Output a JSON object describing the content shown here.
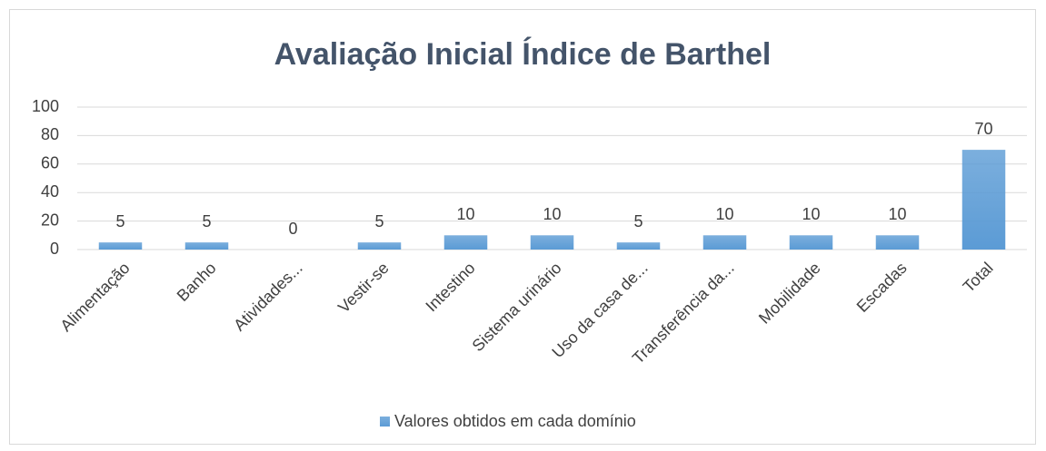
{
  "chart_data": {
    "type": "bar",
    "title": "Avaliação Inicial Índice de Barthel",
    "categories": [
      "Alimentação",
      "Banho",
      "Atividades...",
      "Vestir-se",
      "Intestino",
      "Sistema urinário",
      "Uso da casa de...",
      "Transferência da...",
      "Mobilidade",
      "Escadas",
      "Total"
    ],
    "series": [
      {
        "name": "Valores obtidos em cada domínio",
        "color": "#5b9bd5",
        "values": [
          5,
          5,
          0,
          5,
          10,
          10,
          5,
          10,
          10,
          10,
          70
        ]
      }
    ],
    "ylim": [
      0,
      100
    ],
    "yticks": [
      0,
      20,
      40,
      60,
      80,
      100
    ],
    "grid": true,
    "legend": "bottom"
  }
}
